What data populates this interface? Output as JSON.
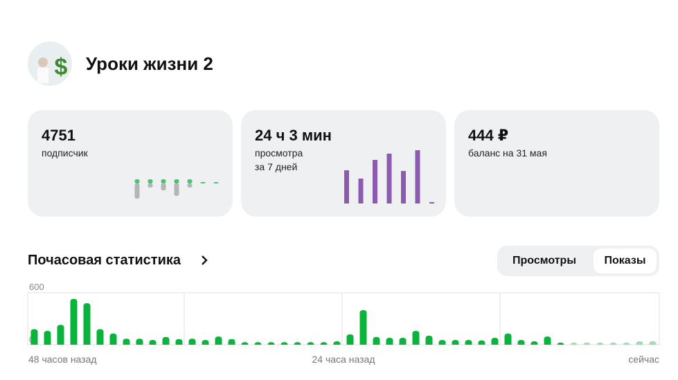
{
  "header": {
    "title": "Уроки жизни 2"
  },
  "cards": [
    {
      "value": "4751",
      "label": "подписчик",
      "mini_chart": {
        "type": "updown",
        "gain": [
          6,
          6,
          6,
          6,
          6,
          2,
          2
        ],
        "loss": [
          22,
          6,
          10,
          18,
          6,
          0,
          0
        ],
        "gain_color": "#4cc274",
        "loss_color": "#b5b5b5"
      }
    },
    {
      "value": "24 ч 3 мин",
      "label": "просмотра",
      "sublabel": "за 7 дней",
      "mini_chart": {
        "type": "bar",
        "values": [
          48,
          36,
          63,
          72,
          47,
          77,
          2
        ],
        "color": "#8c5bb0"
      }
    },
    {
      "value": "444 ₽",
      "label": "баланс на 31 мая"
    }
  ],
  "section": {
    "title": "Почасовая статистика",
    "tabs": [
      "Просмотры",
      "Показы"
    ]
  },
  "chart_data": {
    "type": "bar",
    "ylim": [
      0,
      600
    ],
    "yticks": [
      0,
      600
    ],
    "x_labels": [
      "48 часов назад",
      "24 часа назад",
      "сейчас"
    ],
    "series": [
      {
        "color": "#0ab43c",
        "values": [
          180,
          160,
          230,
          530,
          480,
          180,
          130,
          70,
          70,
          55,
          90,
          65,
          70,
          55,
          95,
          65,
          30,
          30,
          30,
          30,
          30,
          30,
          30,
          40,
          120,
          400,
          90,
          80,
          80,
          160,
          105,
          55,
          55,
          55,
          50,
          80,
          130,
          55,
          40,
          95,
          25,
          null,
          null,
          null,
          null,
          null,
          null,
          null
        ]
      },
      {
        "color": "#9fdcb0",
        "values": [
          null,
          null,
          null,
          null,
          null,
          null,
          null,
          null,
          null,
          null,
          null,
          null,
          null,
          null,
          null,
          null,
          null,
          null,
          null,
          null,
          null,
          null,
          null,
          null,
          null,
          null,
          null,
          null,
          null,
          null,
          null,
          null,
          null,
          null,
          null,
          null,
          null,
          null,
          null,
          null,
          null,
          25,
          25,
          25,
          25,
          25,
          40,
          40
        ]
      }
    ]
  }
}
